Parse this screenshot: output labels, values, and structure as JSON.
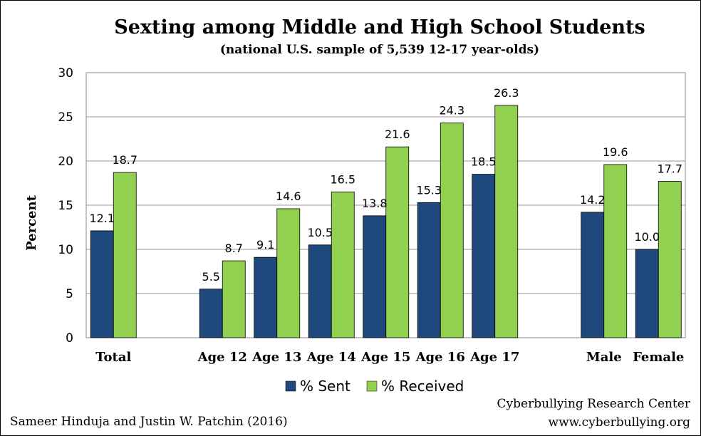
{
  "chart_data": {
    "type": "bar",
    "title": "Sexting among Middle and High School Students",
    "subtitle": "(national U.S. sample of 5,539 12-17 year-olds)",
    "ylabel": "Percent",
    "xlabel": "",
    "ylim": [
      0,
      30
    ],
    "yticks": [
      0,
      5,
      10,
      15,
      20,
      25,
      30
    ],
    "grid": true,
    "legend_position": "bottom",
    "categories": [
      "Total",
      "Age 12",
      "Age 13",
      "Age 14",
      "Age 15",
      "Age 16",
      "Age 17",
      "Male",
      "Female"
    ],
    "series": [
      {
        "name": "% Sent",
        "color": "#1F497D",
        "values": [
          12.1,
          5.5,
          9.1,
          10.5,
          13.8,
          15.3,
          18.5,
          14.2,
          10.0
        ]
      },
      {
        "name": "% Received",
        "color": "#92D050",
        "values": [
          18.7,
          8.7,
          14.6,
          16.5,
          21.6,
          24.3,
          26.3,
          19.6,
          17.7
        ]
      }
    ],
    "data_labels": {
      "% Sent": [
        "12.1",
        "5.5",
        "9.1",
        "10.5",
        "13.8",
        "15.3",
        "18.5",
        "14.2",
        "10.0"
      ],
      "% Received": [
        "18.7",
        "8.7",
        "14.6",
        "16.5",
        "21.6",
        "24.3",
        "26.3",
        "19.6",
        "17.7"
      ]
    }
  },
  "credits": {
    "authors": "Sameer Hinduja and Justin W. Patchin (2016)",
    "org": "Cyberbullying Research Center",
    "url": "www.cyberbullying.org"
  }
}
